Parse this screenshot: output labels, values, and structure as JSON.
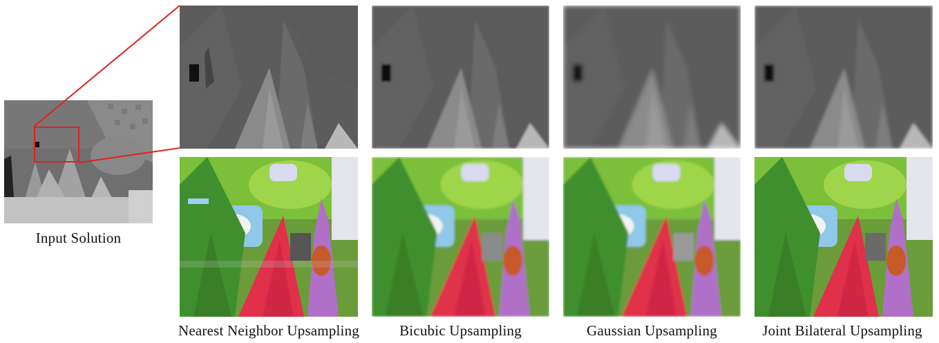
{
  "figure": {
    "input_caption": "Input Solution",
    "method_captions": [
      "Nearest Neighbor Upsampling",
      "Bicubic Upsampling",
      "Gaussian Upsampling",
      "Joint Bilateral Upsampling"
    ],
    "highlight_color": "#e02020"
  }
}
